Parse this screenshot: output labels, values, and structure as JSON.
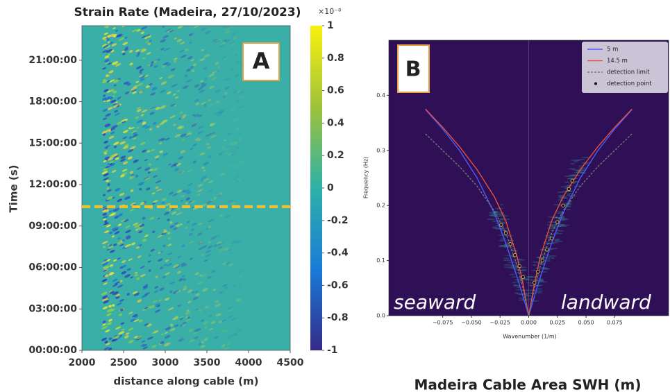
{
  "chart_data": [
    {
      "type": "heatmap",
      "title": "Strain Rate (Madeira, 27/10/2023)",
      "xlabel": "distance along cable (m)",
      "ylabel": "Time (s)",
      "xlim": [
        2000,
        4500
      ],
      "xticks": [
        2000,
        2500,
        3000,
        3500,
        4000,
        4500
      ],
      "ylim": [
        0,
        23.5
      ],
      "yticks": [
        {
          "value": 0,
          "label": "00:00:00"
        },
        {
          "value": 3,
          "label": "03:00:00"
        },
        {
          "value": 6,
          "label": "06:00:00"
        },
        {
          "value": 9,
          "label": "09:00:00"
        },
        {
          "value": 12,
          "label": "12:00:00"
        },
        {
          "value": 15,
          "label": "15:00:00"
        },
        {
          "value": 18,
          "label": "18:00:00"
        },
        {
          "value": 21,
          "label": "21:00:00"
        }
      ],
      "clim": [
        -1,
        1
      ],
      "cticks": [
        -1,
        -0.8,
        -0.6,
        -0.4,
        -0.2,
        0,
        0.2,
        0.4,
        0.6,
        0.8,
        1
      ],
      "colorbar_label": "×10⁻⁸",
      "hline": 10.4,
      "hline_color": "#f2c230",
      "panel_label": "A"
    },
    {
      "type": "line",
      "xlabel": "Wavenumber (1/m)",
      "ylabel": "Frequency (Hz)",
      "xlim": [
        -0.122,
        0.122
      ],
      "xticks": [
        {
          "value": -0.075,
          "label": "−0.075"
        },
        {
          "value": -0.05,
          "label": "−0.050"
        },
        {
          "value": -0.025,
          "label": "−0.025"
        },
        {
          "value": 0,
          "label": "0.000"
        },
        {
          "value": 0.025,
          "label": "0.025"
        },
        {
          "value": 0.05,
          "label": "0.050"
        },
        {
          "value": 0.075,
          "label": "0.075"
        }
      ],
      "ylim": [
        0,
        0.5
      ],
      "yticks": [
        {
          "value": 0,
          "label": "0.0"
        },
        0.1,
        0.2,
        0.3,
        0.4
      ],
      "x": [
        -0.09,
        -0.075,
        -0.06,
        -0.045,
        -0.03,
        -0.02,
        -0.01,
        -0.005,
        0,
        0.005,
        0.01,
        0.02,
        0.03,
        0.045,
        0.06,
        0.075,
        0.09
      ],
      "series": [
        {
          "name": "5 m",
          "color": "#4b5bff",
          "values": [
            0.374,
            0.339,
            0.299,
            0.25,
            0.186,
            0.132,
            0.069,
            0.035,
            0,
            0.035,
            0.069,
            0.132,
            0.186,
            0.25,
            0.299,
            0.339,
            0.374
          ]
        },
        {
          "name": "14.5 m",
          "color": "#e8503a",
          "values": [
            0.375,
            0.342,
            0.306,
            0.265,
            0.216,
            0.172,
            0.106,
            0.058,
            0,
            0.058,
            0.106,
            0.172,
            0.216,
            0.265,
            0.306,
            0.342,
            0.375
          ]
        },
        {
          "name": "detection limit",
          "color": "#777777",
          "style": "dashed",
          "values": [
            0.33,
            0.3,
            0.27,
            0.235,
            0.19,
            0.15,
            0.09,
            0.05,
            0,
            0.05,
            0.09,
            0.15,
            0.19,
            0.235,
            0.27,
            0.3,
            0.33
          ]
        },
        {
          "name": "detection point",
          "color": "#111111",
          "type": "scatter",
          "x": [
            -0.024,
            -0.02,
            -0.016,
            -0.012,
            -0.008,
            -0.005,
            0.005,
            0.008,
            0.012,
            0.016,
            0.02,
            0.025,
            0.03,
            0.035,
            0.038
          ],
          "values": [
            0.165,
            0.15,
            0.13,
            0.11,
            0.09,
            0.07,
            0.06,
            0.08,
            0.1,
            0.12,
            0.14,
            0.17,
            0.2,
            0.23,
            0.245
          ]
        }
      ],
      "legend": "upper right",
      "panel_label": "B",
      "annotations": [
        "seaward",
        "landward"
      ]
    }
  ],
  "caption": "Madeira Cable Area SWH (m)"
}
